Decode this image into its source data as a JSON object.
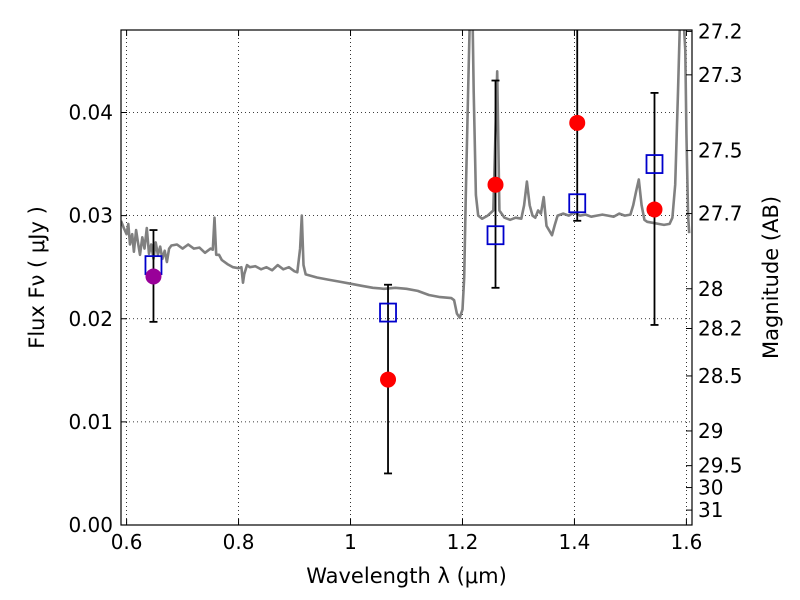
{
  "chart_data": {
    "type": "scatter",
    "xlabel": "Wavelength  λ (μm)",
    "ylabel": "Flux  Fν  ( μJy )",
    "ylabel_right": "Magnitude (AB)",
    "xlim": [
      0.59,
      1.61
    ],
    "ylim": [
      0.0,
      0.048
    ],
    "x_ticks": [
      0.6,
      0.8,
      1.0,
      1.2,
      1.4,
      1.6
    ],
    "x_tick_labels": [
      "0.6",
      "0.8",
      "1",
      "1.2",
      "1.4",
      "1.6"
    ],
    "y_ticks": [
      0.0,
      0.01,
      0.02,
      0.03,
      0.04
    ],
    "y_tick_labels": [
      "0.00",
      "0.01",
      "0.02",
      "0.03",
      "0.04"
    ],
    "mag_ticks": [
      27.2,
      27.3,
      27.5,
      27.7,
      28,
      28.2,
      28.5,
      29,
      29.5,
      30,
      31
    ],
    "mag_tick_labels": [
      "27.2",
      "27.3",
      "27.5",
      "27.7",
      "28",
      "28.2",
      "28.5",
      "29",
      "29.5",
      "30",
      "31"
    ],
    "grid": true,
    "colors": {
      "model": "#808080",
      "observed": "#ff0000",
      "model_flux": "#0000cc",
      "overlap": "#990099",
      "error": "#000000"
    },
    "series": [
      {
        "type": "line",
        "color": "#808080",
        "points": [
          [
            0.59,
            0.0295
          ],
          [
            0.595,
            0.0288
          ],
          [
            0.6,
            0.0282
          ],
          [
            0.603,
            0.0292
          ],
          [
            0.606,
            0.0272
          ],
          [
            0.61,
            0.0282
          ],
          [
            0.613,
            0.0265
          ],
          [
            0.617,
            0.0286
          ],
          [
            0.62,
            0.0275
          ],
          [
            0.624,
            0.0262
          ],
          [
            0.628,
            0.0279
          ],
          [
            0.632,
            0.0268
          ],
          [
            0.636,
            0.0288
          ],
          [
            0.64,
            0.0263
          ],
          [
            0.644,
            0.0272
          ],
          [
            0.648,
            0.0258
          ],
          [
            0.652,
            0.0274
          ],
          [
            0.656,
            0.0262
          ],
          [
            0.66,
            0.027
          ],
          [
            0.664,
            0.0258
          ],
          [
            0.668,
            0.0266
          ],
          [
            0.672,
            0.0255
          ],
          [
            0.676,
            0.0268
          ],
          [
            0.68,
            0.0271
          ],
          [
            0.69,
            0.0272
          ],
          [
            0.7,
            0.0268
          ],
          [
            0.71,
            0.0272
          ],
          [
            0.72,
            0.0268
          ],
          [
            0.73,
            0.0269
          ],
          [
            0.74,
            0.0264
          ],
          [
            0.75,
            0.0268
          ],
          [
            0.754,
            0.0267
          ],
          [
            0.757,
            0.0298
          ],
          [
            0.76,
            0.0262
          ],
          [
            0.765,
            0.0262
          ],
          [
            0.77,
            0.0257
          ],
          [
            0.78,
            0.0253
          ],
          [
            0.79,
            0.025
          ],
          [
            0.8,
            0.0249
          ],
          [
            0.805,
            0.025
          ],
          [
            0.808,
            0.0235
          ],
          [
            0.81,
            0.0243
          ],
          [
            0.815,
            0.0252
          ],
          [
            0.82,
            0.025
          ],
          [
            0.83,
            0.0251
          ],
          [
            0.84,
            0.0248
          ],
          [
            0.85,
            0.025
          ],
          [
            0.86,
            0.0247
          ],
          [
            0.87,
            0.0252
          ],
          [
            0.88,
            0.0248
          ],
          [
            0.89,
            0.025
          ],
          [
            0.9,
            0.0246
          ],
          [
            0.905,
            0.0245
          ],
          [
            0.91,
            0.0268
          ],
          [
            0.913,
            0.03
          ],
          [
            0.916,
            0.0252
          ],
          [
            0.92,
            0.0243
          ],
          [
            0.94,
            0.024
          ],
          [
            0.96,
            0.0238
          ],
          [
            0.98,
            0.0236
          ],
          [
            1.0,
            0.0234
          ],
          [
            1.02,
            0.0232
          ],
          [
            1.04,
            0.023
          ],
          [
            1.06,
            0.0229
          ],
          [
            1.08,
            0.023
          ],
          [
            1.1,
            0.0229
          ],
          [
            1.12,
            0.0227
          ],
          [
            1.14,
            0.0223
          ],
          [
            1.16,
            0.0221
          ],
          [
            1.18,
            0.022
          ],
          [
            1.185,
            0.0218
          ],
          [
            1.19,
            0.0205
          ],
          [
            1.195,
            0.0201
          ],
          [
            1.2,
            0.0209
          ],
          [
            1.203,
            0.024
          ],
          [
            1.206,
            0.032
          ],
          [
            1.21,
            0.042
          ],
          [
            1.213,
            0.049
          ],
          [
            1.218,
            0.049
          ],
          [
            1.22,
            0.042
          ],
          [
            1.224,
            0.032
          ],
          [
            1.228,
            0.03
          ],
          [
            1.235,
            0.0297
          ],
          [
            1.245,
            0.03
          ],
          [
            1.255,
            0.0305
          ],
          [
            1.262,
            0.044
          ],
          [
            1.266,
            0.0305
          ],
          [
            1.275,
            0.0298
          ],
          [
            1.285,
            0.0296
          ],
          [
            1.295,
            0.0298
          ],
          [
            1.305,
            0.0297
          ],
          [
            1.31,
            0.031
          ],
          [
            1.315,
            0.0333
          ],
          [
            1.32,
            0.031
          ],
          [
            1.325,
            0.03
          ],
          [
            1.33,
            0.0298
          ],
          [
            1.335,
            0.0305
          ],
          [
            1.34,
            0.0302
          ],
          [
            1.345,
            0.0318
          ],
          [
            1.35,
            0.029
          ],
          [
            1.36,
            0.0281
          ],
          [
            1.365,
            0.0291
          ],
          [
            1.37,
            0.03
          ],
          [
            1.38,
            0.0302
          ],
          [
            1.39,
            0.03
          ],
          [
            1.4,
            0.0303
          ],
          [
            1.41,
            0.03
          ],
          [
            1.42,
            0.0301
          ],
          [
            1.43,
            0.0299
          ],
          [
            1.44,
            0.03
          ],
          [
            1.45,
            0.0301
          ],
          [
            1.46,
            0.03
          ],
          [
            1.47,
            0.0299
          ],
          [
            1.48,
            0.0302
          ],
          [
            1.49,
            0.03
          ],
          [
            1.5,
            0.0301
          ],
          [
            1.505,
            0.031
          ],
          [
            1.51,
            0.0323
          ],
          [
            1.515,
            0.0335
          ],
          [
            1.52,
            0.031
          ],
          [
            1.525,
            0.0296
          ],
          [
            1.53,
            0.0294
          ],
          [
            1.54,
            0.0293
          ],
          [
            1.55,
            0.0292
          ],
          [
            1.56,
            0.0291
          ],
          [
            1.57,
            0.0292
          ],
          [
            1.575,
            0.0298
          ],
          [
            1.58,
            0.033
          ],
          [
            1.585,
            0.042
          ],
          [
            1.588,
            0.048
          ],
          [
            1.595,
            0.049
          ],
          [
            1.598,
            0.046
          ],
          [
            1.6,
            0.038
          ],
          [
            1.603,
            0.03
          ],
          [
            1.605,
            0.0283
          ]
        ]
      },
      {
        "type": "errorbar",
        "color": "#000000",
        "points": [
          {
            "x": 0.648,
            "y": 0.0241,
            "ylo": 0.0197,
            "yhi": 0.0286
          },
          {
            "x": 1.067,
            "y": 0.0141,
            "ylo": 0.005,
            "yhi": 0.0233
          },
          {
            "x": 1.259,
            "y": 0.033,
            "ylo": 0.023,
            "yhi": 0.0431
          },
          {
            "x": 1.405,
            "y": 0.039,
            "ylo": 0.0295,
            "yhi": 0.0485
          },
          {
            "x": 1.543,
            "y": 0.0306,
            "ylo": 0.0194,
            "yhi": 0.0419
          }
        ]
      },
      {
        "type": "squares",
        "color": "#0000cc",
        "points": [
          [
            0.648,
            0.0252
          ],
          [
            1.067,
            0.0206
          ],
          [
            1.259,
            0.0281
          ],
          [
            1.405,
            0.0312
          ],
          [
            1.543,
            0.035
          ]
        ]
      },
      {
        "type": "circles",
        "color": "#ff0000",
        "points": [
          [
            0.648,
            0.0241
          ],
          [
            1.067,
            0.0141
          ],
          [
            1.259,
            0.033
          ],
          [
            1.405,
            0.039
          ],
          [
            1.543,
            0.0306
          ]
        ],
        "overlap_color": "#990099",
        "overlap_index": 0
      }
    ]
  }
}
